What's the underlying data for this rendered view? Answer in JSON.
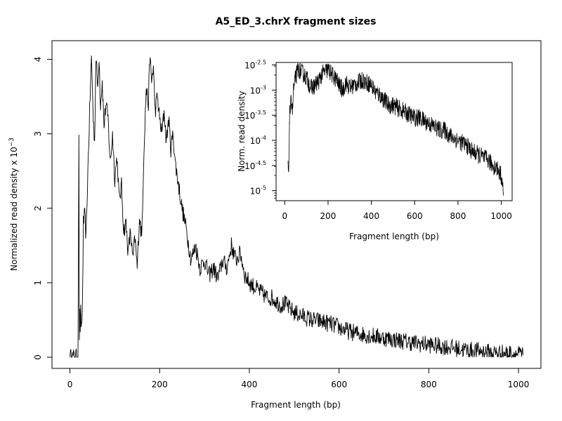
{
  "chart_data": [
    {
      "type": "line",
      "title": "A5_ED_3.chrX fragment sizes",
      "xlabel": "Fragment length (bp)",
      "ylabel": "Normalized read density x 10",
      "ylabel_exponent": "−3",
      "xlim": [
        -40,
        1050
      ],
      "ylim": [
        -0.15,
        4.25
      ],
      "x_ticks": [
        0,
        200,
        400,
        600,
        800,
        1000
      ],
      "y_ticks": [
        0,
        1,
        2,
        3,
        4
      ],
      "grid": false,
      "legend": "none",
      "series": [
        {
          "x": [
            0,
            15,
            18,
            19,
            20,
            21,
            22,
            23,
            24,
            25,
            26,
            27,
            28,
            30,
            33,
            36,
            40,
            45,
            48,
            52,
            55,
            58,
            62,
            65,
            68,
            72,
            76,
            80,
            85,
            90,
            95,
            100,
            105,
            110,
            115,
            120,
            125,
            130,
            135,
            140,
            145,
            150,
            155,
            160,
            165,
            170,
            175,
            178,
            182,
            186,
            190,
            195,
            200,
            205,
            210,
            215,
            220,
            225,
            230,
            235,
            240,
            250,
            260,
            270,
            280,
            290,
            300,
            310,
            320,
            330,
            340,
            350,
            360,
            370,
            380,
            390,
            400,
            410,
            420,
            430,
            440,
            450,
            460,
            470,
            480,
            490,
            500,
            520,
            540,
            560,
            580,
            600,
            620,
            640,
            660,
            680,
            700,
            720,
            740,
            760,
            780,
            800,
            820,
            840,
            860,
            880,
            900,
            920,
            940,
            960,
            980,
            1000,
            1010
          ],
          "y": [
            0,
            0,
            0.02,
            1.6,
            2.9,
            0.3,
            0.55,
            0.4,
            0.6,
            0.3,
            0.5,
            0.45,
            0.8,
            1.8,
            1.9,
            1.6,
            2.5,
            3.5,
            4.05,
            3.2,
            2.9,
            4.05,
            3.6,
            4.05,
            3.4,
            3.7,
            3.1,
            3.4,
            3.2,
            2.6,
            3.0,
            2.4,
            2.7,
            2.1,
            2.3,
            1.7,
            1.8,
            1.4,
            1.7,
            1.3,
            1.6,
            1.2,
            1.9,
            1.6,
            2.8,
            3.6,
            3.4,
            4.05,
            3.7,
            3.9,
            3.3,
            3.5,
            3.2,
            3.0,
            3.3,
            2.9,
            3.2,
            2.8,
            3.0,
            2.6,
            2.4,
            2.0,
            1.7,
            1.3,
            1.5,
            1.2,
            1.3,
            1.1,
            1.2,
            1.05,
            1.3,
            1.2,
            1.5,
            1.3,
            1.4,
            1.1,
            1.0,
            0.95,
            0.9,
            0.85,
            0.8,
            0.8,
            0.75,
            0.7,
            0.72,
            0.65,
            0.6,
            0.55,
            0.5,
            0.48,
            0.45,
            0.4,
            0.35,
            0.32,
            0.3,
            0.28,
            0.26,
            0.24,
            0.22,
            0.2,
            0.18,
            0.17,
            0.15,
            0.14,
            0.12,
            0.1,
            0.09,
            0.08,
            0.06,
            0.06,
            0.05,
            0.04,
            0.03
          ],
          "noise": 0.12
        }
      ]
    },
    {
      "type": "line",
      "title": "",
      "xlabel": "Fragment length (bp)",
      "ylabel": "Norm. read density",
      "x_scale": "linear",
      "y_scale": "log",
      "xlim": [
        -40,
        1050
      ],
      "ylim_log10": [
        -5.2,
        -2.45
      ],
      "x_ticks": [
        0,
        200,
        400,
        600,
        800,
        1000
      ],
      "y_ticks": [
        {
          "base": "10",
          "exp": "-2.5",
          "log10": -2.5
        },
        {
          "base": "10",
          "exp": "-3",
          "log10": -3
        },
        {
          "base": "10",
          "exp": "-3.5",
          "log10": -3.5
        },
        {
          "base": "10",
          "exp": "-4",
          "log10": -4
        },
        {
          "base": "10",
          "exp": "-4.5",
          "log10": -4.5
        },
        {
          "base": "10",
          "exp": "-5",
          "log10": -5
        }
      ],
      "grid": false,
      "legend": "none",
      "series": [
        {
          "x": [
            15,
            18,
            22,
            25,
            28,
            32,
            36,
            40,
            45,
            50,
            55,
            60,
            70,
            80,
            90,
            100,
            110,
            120,
            130,
            140,
            150,
            160,
            170,
            180,
            190,
            200,
            210,
            220,
            230,
            240,
            250,
            260,
            270,
            280,
            290,
            300,
            320,
            340,
            360,
            380,
            400,
            420,
            440,
            460,
            480,
            500,
            520,
            540,
            560,
            580,
            600,
            620,
            640,
            660,
            680,
            700,
            720,
            740,
            760,
            780,
            800,
            820,
            840,
            860,
            880,
            900,
            920,
            940,
            960,
            980,
            1000,
            1010
          ],
          "y_log10": [
            -4.4,
            -4.8,
            -3.5,
            -3.4,
            -3.3,
            -3.2,
            -3.4,
            -3.0,
            -2.9,
            -2.75,
            -2.68,
            -2.6,
            -2.6,
            -2.65,
            -2.7,
            -2.75,
            -2.85,
            -2.95,
            -2.95,
            -2.9,
            -2.85,
            -2.8,
            -2.7,
            -2.65,
            -2.62,
            -2.6,
            -2.65,
            -2.7,
            -2.75,
            -2.8,
            -2.9,
            -2.95,
            -3.0,
            -2.85,
            -2.9,
            -2.95,
            -2.9,
            -2.85,
            -2.8,
            -2.85,
            -2.9,
            -3.05,
            -3.1,
            -3.2,
            -3.3,
            -3.3,
            -3.35,
            -3.4,
            -3.45,
            -3.5,
            -3.55,
            -3.55,
            -3.6,
            -3.65,
            -3.7,
            -3.75,
            -3.8,
            -3.8,
            -3.9,
            -3.95,
            -4.0,
            -4.05,
            -4.1,
            -4.2,
            -4.25,
            -4.3,
            -4.35,
            -4.4,
            -4.5,
            -4.55,
            -4.7,
            -5.1
          ],
          "noise": 0.18
        }
      ]
    }
  ]
}
